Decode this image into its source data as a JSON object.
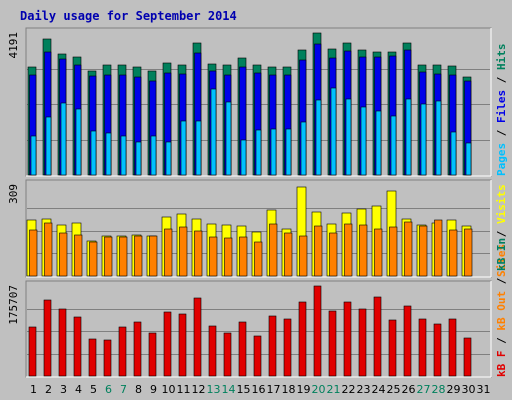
{
  "colors": {
    "background": "#c0c0c0",
    "plot_bg": "#c0c0c0",
    "title": "#0000b0",
    "hits": "#00805c",
    "files": "#0000e8",
    "pages": "#00c0ff",
    "visits": "#ffff00",
    "sites": "#ff8000",
    "kbin": "#007f5f",
    "kbout": "#ff8000",
    "kbf": "#e00000",
    "weekend": "#00805c",
    "weekday": "#000000",
    "grid": "#808080"
  },
  "chart_data": {
    "type": "bar",
    "title": "Daily usage for September 2014",
    "categories": [
      "1",
      "2",
      "3",
      "4",
      "5",
      "6",
      "7",
      "8",
      "9",
      "10",
      "11",
      "12",
      "13",
      "14",
      "15",
      "16",
      "17",
      "18",
      "19",
      "20",
      "21",
      "22",
      "23",
      "24",
      "25",
      "26",
      "27",
      "28",
      "29",
      "30",
      "31"
    ],
    "weekend_days": [
      "6",
      "7",
      "13",
      "14",
      "20",
      "21",
      "27",
      "28"
    ],
    "panels": [
      {
        "max_label": "4191",
        "ymax": 4191,
        "series": [
          {
            "name": "Hits",
            "values": [
              3200,
              4020,
              3560,
              3480,
              3080,
              3240,
              3240,
              3190,
              3080,
              3300,
              3260,
              3900,
              3280,
              3240,
              3440,
              3260,
              3200,
              3200,
              3700,
              4190,
              3720,
              3900,
              3680,
              3640,
              3640,
              3900,
              3260,
              3250,
              3210,
              2900,
              0
            ]
          },
          {
            "name": "Files",
            "values": [
              2940,
              3640,
              3420,
              3260,
              2910,
              2960,
              2950,
              2900,
              2780,
              3000,
              2990,
              3590,
              3080,
              2940,
              3200,
              3010,
              2960,
              2940,
              3380,
              3860,
              3460,
              3650,
              3480,
              3470,
              3500,
              3690,
              3050,
              2990,
              2940,
              2760,
              0
            ]
          },
          {
            "name": "Pages",
            "values": [
              1150,
              1720,
              2130,
              1950,
              1300,
              1250,
              1160,
              960,
              1150,
              960,
              1580,
              1590,
              2550,
              2160,
              1020,
              1330,
              1350,
              1360,
              1550,
              2210,
              2570,
              2250,
              2000,
              1890,
              1730,
              2240,
              2110,
              2180,
              1260,
              940,
              0
            ]
          }
        ]
      },
      {
        "max_label": "309",
        "ymax": 309,
        "series": [
          {
            "name": "Visits",
            "values": [
              190,
              195,
              172,
              181,
              120,
              135,
              137,
              139,
              137,
              202,
              212,
              194,
              176,
              174,
              171,
              151,
              223,
              158,
              303,
              217,
              176,
              213,
              228,
              236,
              287,
              193,
              172,
              181,
              189,
              171,
              0
            ]
          },
          {
            "name": "Sites",
            "values": [
              157,
              179,
              147,
              139,
              115,
              134,
              132,
              135,
              135,
              160,
              166,
              153,
              133,
              130,
              132,
              117,
              177,
              146,
              135,
              170,
              146,
              176,
              173,
              159,
              168,
              183,
              171,
              189,
              157,
              158,
              0
            ]
          }
        ]
      },
      {
        "max_label": "175707",
        "ymax": 175707,
        "series": [
          {
            "name": "kB F",
            "values": [
              96000,
              149000,
              130000,
              116000,
              72000,
              70000,
              96000,
              106000,
              84000,
              124000,
              121000,
              153000,
              98000,
              84000,
              105000,
              79000,
              117000,
              111000,
              144000,
              175000,
              127000,
              145000,
              131000,
              154000,
              109000,
              137000,
              112000,
              101000,
              112000,
              75000,
              0
            ]
          },
          {
            "name": "kB In",
            "values": [
              0,
              0,
              0,
              0,
              0,
              0,
              0,
              0,
              0,
              0,
              0,
              0,
              0,
              0,
              0,
              0,
              0,
              0,
              0,
              0,
              0,
              0,
              0,
              0,
              0,
              0,
              0,
              0,
              0,
              0,
              0
            ]
          },
          {
            "name": "kB Out",
            "values": [
              0,
              0,
              0,
              0,
              0,
              0,
              0,
              0,
              0,
              0,
              0,
              0,
              0,
              0,
              0,
              0,
              0,
              0,
              0,
              0,
              0,
              0,
              0,
              0,
              0,
              0,
              0,
              0,
              0,
              0,
              0
            ]
          }
        ]
      }
    ],
    "legend_top": [
      {
        "text": "Pages",
        "color": "#00c0ff"
      },
      {
        "text": " / ",
        "color": "#000000"
      },
      {
        "text": "Files",
        "color": "#0000e8"
      },
      {
        "text": " / ",
        "color": "#000000"
      },
      {
        "text": "Hits",
        "color": "#00805c"
      }
    ],
    "legend_middle": [
      {
        "text": "Sites",
        "color": "#ff8000"
      },
      {
        "text": " / ",
        "color": "#000000"
      },
      {
        "text": "Visits",
        "color": "#ffff00"
      }
    ],
    "legend_bottom": [
      {
        "text": "kB F",
        "color": "#e00000"
      },
      {
        "text": " / ",
        "color": "#000000"
      },
      {
        "text": "kB Out",
        "color": "#ff8000"
      },
      {
        "text": " / ",
        "color": "#000000"
      },
      {
        "text": "kB In",
        "color": "#007f5f"
      }
    ]
  }
}
